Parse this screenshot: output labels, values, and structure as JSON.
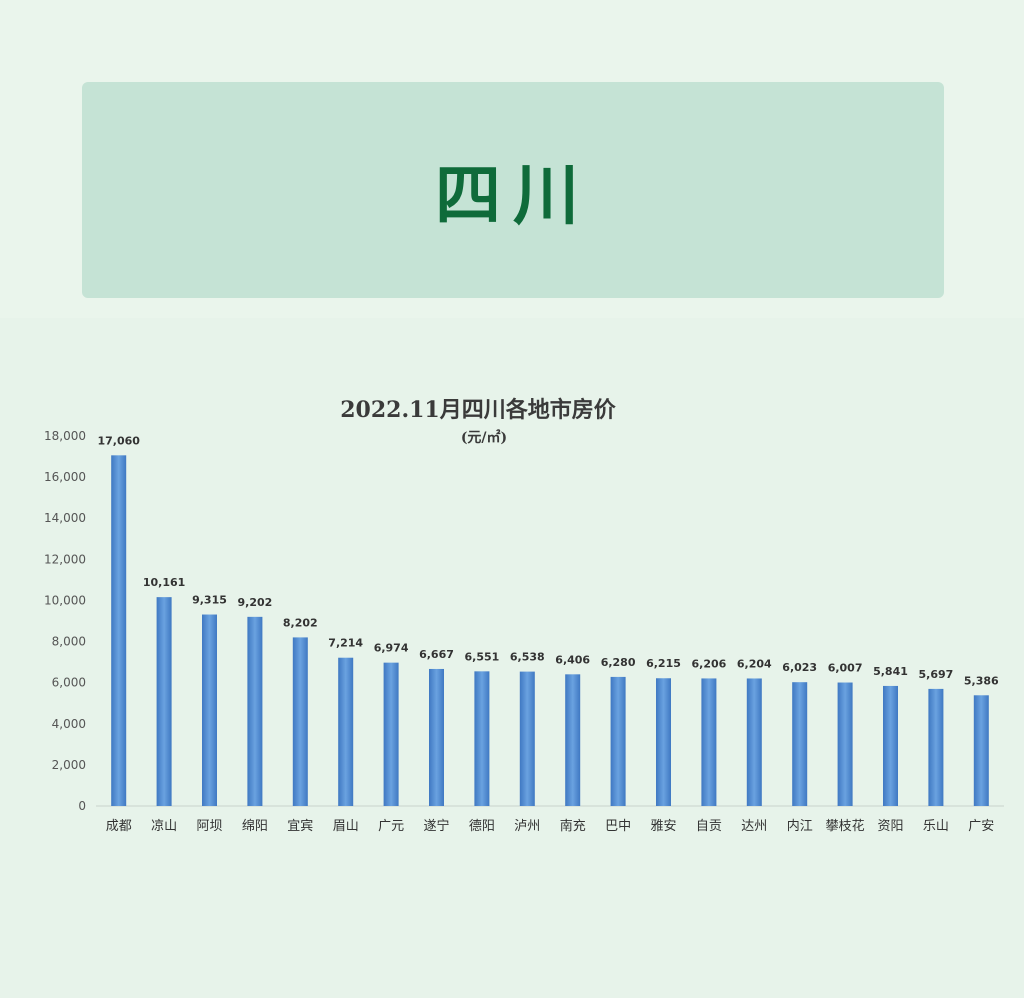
{
  "header": {
    "title": "四川"
  },
  "chart_data": {
    "type": "bar",
    "title": "2022.11月四川各地市房价",
    "subtitle": "(元/㎡)",
    "categories": [
      "成都",
      "凉山",
      "阿坝",
      "绵阳",
      "宜宾",
      "眉山",
      "广元",
      "遂宁",
      "德阳",
      "泸州",
      "南充",
      "巴中",
      "雅安",
      "自贡",
      "达州",
      "内江",
      "攀枝花",
      "资阳",
      "乐山",
      "广安"
    ],
    "values": [
      17060,
      10161,
      9315,
      9202,
      8202,
      7214,
      6974,
      6667,
      6551,
      6538,
      6406,
      6280,
      6215,
      6206,
      6204,
      6023,
      6007,
      5841,
      5697,
      5386
    ],
    "value_labels": [
      "17,060",
      "10,161",
      "9,315",
      "9,202",
      "8,202",
      "7,214",
      "6,974",
      "6,667",
      "6,551",
      "6,538",
      "6,406",
      "6,280",
      "6,215",
      "6,206",
      "6,204",
      "6,023",
      "6,007",
      "5,841",
      "5,697",
      "5,386"
    ],
    "ylim": [
      0,
      18000
    ],
    "yticks": [
      "0",
      "2,000",
      "4,000",
      "6,000",
      "8,000",
      "10,000",
      "12,000",
      "14,000",
      "16,000",
      "18,000"
    ],
    "grid": false,
    "legend": "none",
    "bar_color": "#5b93d6",
    "bar_color_dark": "#3f78c2"
  }
}
